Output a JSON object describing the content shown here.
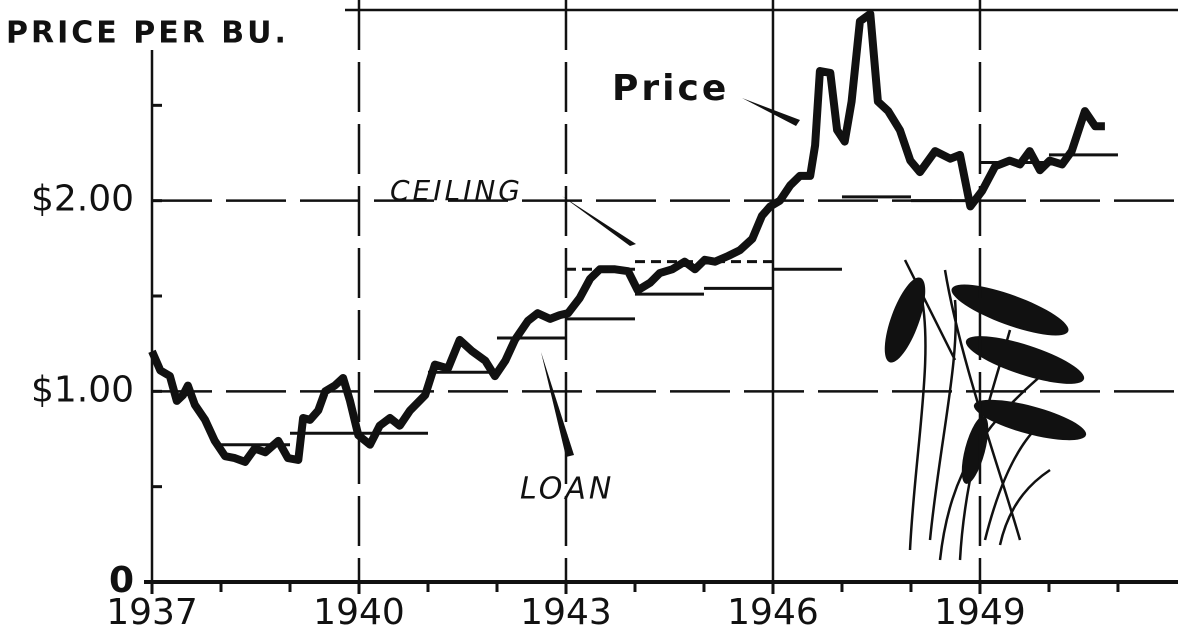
{
  "chart_data": {
    "type": "line",
    "title": "PRICE PER BU.",
    "xlim": [
      1937,
      1951.87
    ],
    "ylim": [
      0,
      3.0
    ],
    "xticks": [
      1937,
      1940,
      1943,
      1946,
      1949
    ],
    "xminor_ticks": [
      1938,
      1939,
      1941,
      1942,
      1944,
      1945,
      1947,
      1948,
      1950,
      1951
    ],
    "yticks": [
      0,
      {
        "value": 1,
        "label": "$1.00"
      },
      {
        "value": 2,
        "label": "$2.00"
      }
    ],
    "yminor_ticks": [
      0.5,
      1.5,
      2.5
    ],
    "grid": true,
    "series": [
      {
        "name": "Price",
        "color": "#111111",
        "x": [
          1937.0,
          1937.12,
          1937.26,
          1937.36,
          1937.45,
          1937.52,
          1937.62,
          1937.77,
          1937.91,
          1938.06,
          1938.2,
          1938.35,
          1938.49,
          1938.64,
          1938.83,
          1938.97,
          1939.12,
          1939.19,
          1939.29,
          1939.41,
          1939.51,
          1939.65,
          1939.77,
          1939.87,
          1939.99,
          1940.16,
          1940.3,
          1940.45,
          1940.59,
          1940.74,
          1940.96,
          1941.1,
          1941.29,
          1941.46,
          1941.64,
          1941.83,
          1941.97,
          1942.12,
          1942.26,
          1942.45,
          1942.59,
          1942.77,
          1942.91,
          1943.03,
          1943.2,
          1943.35,
          1943.49,
          1943.71,
          1943.9,
          1944.04,
          1944.22,
          1944.36,
          1944.54,
          1944.72,
          1944.87,
          1945.01,
          1945.16,
          1945.35,
          1945.52,
          1945.7,
          1945.84,
          1945.96,
          1946.1,
          1946.25,
          1946.39,
          1946.54,
          1946.61,
          1946.68,
          1946.83,
          1946.93,
          1947.04,
          1947.14,
          1947.26,
          1947.41,
          1947.52,
          1947.67,
          1947.84,
          1947.99,
          1948.13,
          1948.35,
          1948.57,
          1948.71,
          1948.86,
          1949.03,
          1949.22,
          1949.43,
          1949.58,
          1949.72,
          1949.87,
          1950.01,
          1950.19,
          1950.33,
          1950.52,
          1950.67,
          1950.81
        ],
        "values": [
          1.21,
          1.11,
          1.08,
          0.95,
          0.98,
          1.03,
          0.93,
          0.85,
          0.74,
          0.66,
          0.65,
          0.63,
          0.7,
          0.68,
          0.74,
          0.65,
          0.64,
          0.86,
          0.85,
          0.9,
          1.0,
          1.03,
          1.07,
          0.95,
          0.77,
          0.72,
          0.82,
          0.86,
          0.82,
          0.9,
          0.98,
          1.14,
          1.12,
          1.27,
          1.21,
          1.16,
          1.08,
          1.16,
          1.27,
          1.37,
          1.41,
          1.38,
          1.4,
          1.41,
          1.49,
          1.59,
          1.64,
          1.64,
          1.63,
          1.53,
          1.57,
          1.62,
          1.64,
          1.68,
          1.64,
          1.69,
          1.68,
          1.71,
          1.74,
          1.8,
          1.92,
          1.97,
          2.0,
          2.08,
          2.13,
          2.13,
          2.29,
          2.68,
          2.67,
          2.37,
          2.31,
          2.52,
          2.94,
          2.98,
          2.52,
          2.47,
          2.37,
          2.21,
          2.15,
          2.26,
          2.22,
          2.24,
          1.97,
          2.05,
          2.18,
          2.21,
          2.19,
          2.26,
          2.16,
          2.21,
          2.19,
          2.26,
          2.47,
          2.39,
          2.39
        ]
      },
      {
        "name": "LOAN",
        "color": "#111111",
        "segments": [
          {
            "x": [
              1937.91,
              1939.0
            ],
            "value": 0.72
          },
          {
            "x": [
              1939.0,
              1941.0
            ],
            "value": 0.78
          },
          {
            "x": [
              1941.0,
              1942.0
            ],
            "value": 1.1
          },
          {
            "x": [
              1942.0,
              1943.0
            ],
            "value": 1.28
          },
          {
            "x": [
              1943.0,
              1944.0
            ],
            "value": 1.38
          },
          {
            "x": [
              1944.0,
              1945.0
            ],
            "value": 1.51
          },
          {
            "x": [
              1945.0,
              1946.0
            ],
            "value": 1.54
          },
          {
            "x": [
              1946.0,
              1947.0
            ],
            "value": 1.64
          },
          {
            "x": [
              1947.0,
              1948.0
            ],
            "value": 2.02
          },
          {
            "x": [
              1948.0,
              1949.0
            ],
            "value": 2.0
          },
          {
            "x": [
              1949.0,
              1950.0
            ],
            "value": 2.2
          },
          {
            "x": [
              1950.0,
              1951.0
            ],
            "value": 2.24
          }
        ]
      },
      {
        "name": "CEILING",
        "color": "#111111",
        "segments": [
          {
            "x": [
              1943.0,
              1944.0
            ],
            "value": 1.64
          },
          {
            "x": [
              1944.0,
              1946.0
            ],
            "value": 1.68
          }
        ]
      }
    ]
  }
}
